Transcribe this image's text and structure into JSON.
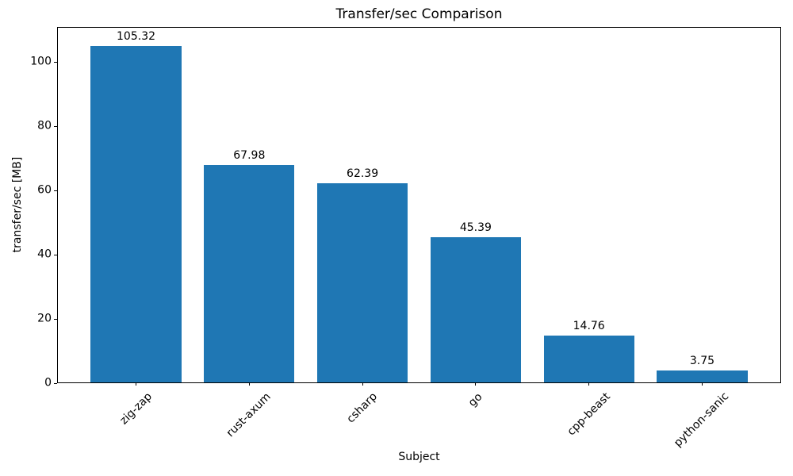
{
  "chart_data": {
    "type": "bar",
    "title": "Transfer/sec Comparison",
    "xlabel": "Subject",
    "ylabel": "transfer/sec [MB]",
    "categories": [
      "zig-zap",
      "rust-axum",
      "csharp",
      "go",
      "cpp-beast",
      "python-sanic"
    ],
    "values": [
      105.32,
      67.98,
      62.39,
      45.39,
      14.76,
      3.75
    ],
    "bar_labels": [
      "105.32",
      "67.98",
      "62.39",
      "45.39",
      "14.76",
      "3.75"
    ],
    "yticks": [
      0,
      20,
      40,
      60,
      80,
      100
    ],
    "ytick_labels": [
      "0",
      "20",
      "40",
      "60",
      "80",
      "100"
    ],
    "ylim": [
      0,
      110.9
    ],
    "xlim_pad": 0.69,
    "bar_width": 0.8,
    "xtick_rotation_deg": 45,
    "grid": false,
    "legend": false,
    "bar_color": "#1f77b4",
    "axis_color": "#000000",
    "text_color": "#000000",
    "background_color": "#ffffff"
  }
}
